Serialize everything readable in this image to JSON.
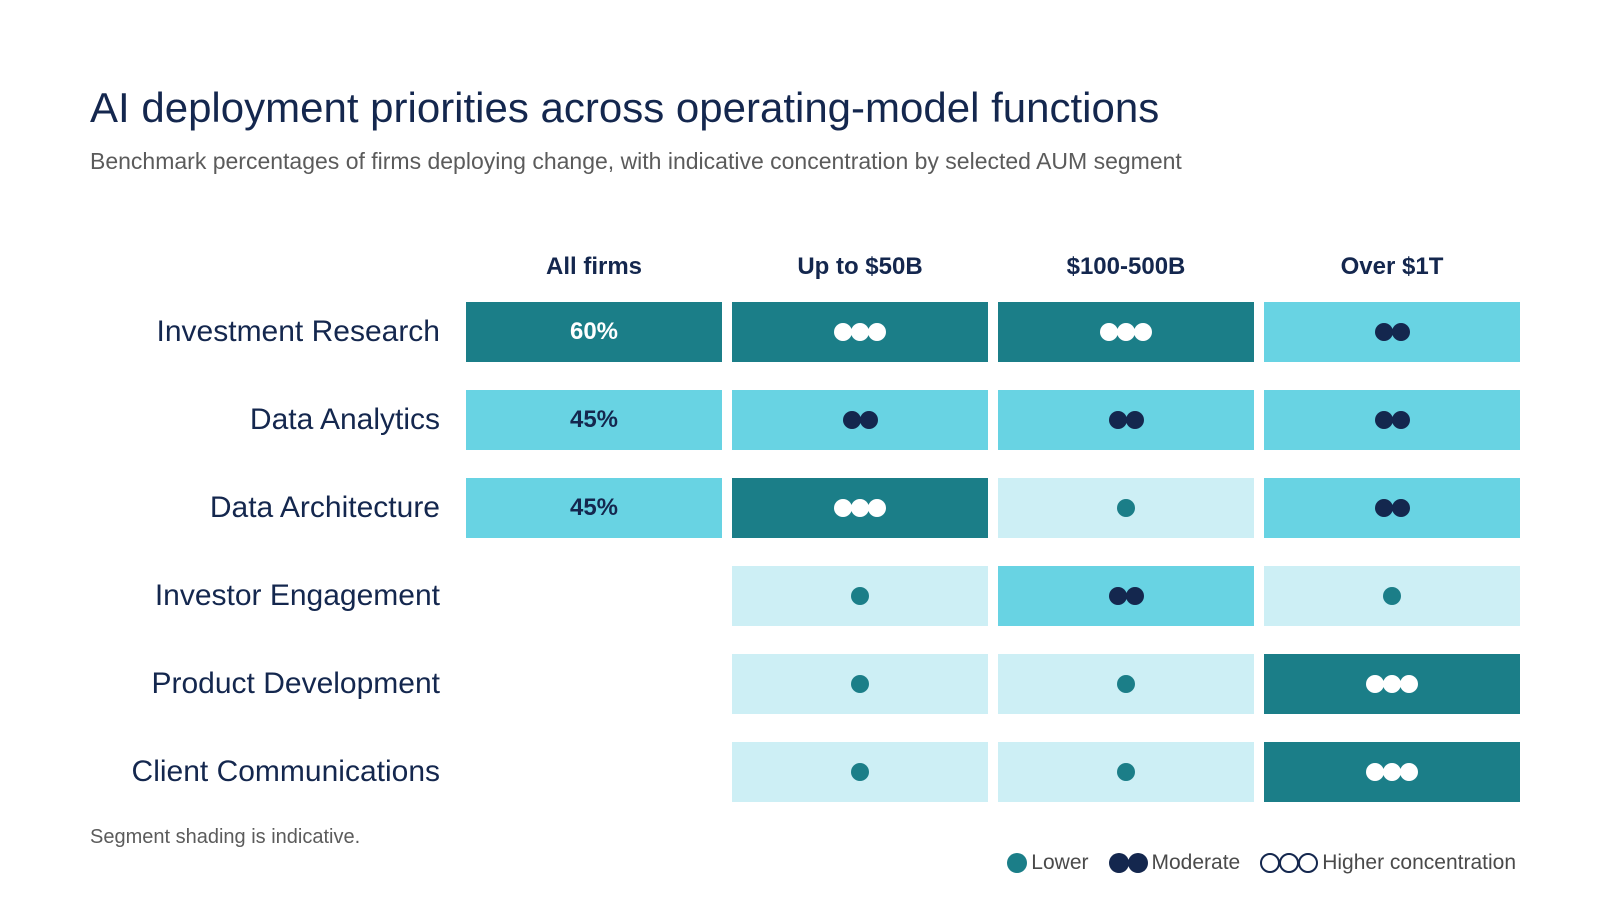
{
  "title": "AI deployment priorities across operating-model functions",
  "subtitle": "Benchmark percentages of firms deploying change, with indicative concentration by selected AUM segment",
  "footnote": "Segment shading is indicative.",
  "colors": {
    "dark": "#1b7e88",
    "medium": "#68d3e3",
    "light": "#cdeff5",
    "navy": "#14274e",
    "teal_dot": "#1b7e88",
    "white": "#ffffff"
  },
  "legend": [
    {
      "label": "Lower",
      "level": 1,
      "style": "teal"
    },
    {
      "label": "Moderate",
      "level": 2,
      "style": "navy"
    },
    {
      "label": "Higher concentration",
      "level": 3,
      "style": "outline"
    }
  ],
  "chart_data": {
    "type": "table",
    "columns": [
      "All firms",
      "Up to $50B",
      "$100-500B",
      "Over $1T"
    ],
    "rows": [
      {
        "label": "Investment Research",
        "all_firms": "60%",
        "segments": [
          3,
          3,
          2
        ]
      },
      {
        "label": "Data Analytics",
        "all_firms": "45%",
        "segments": [
          2,
          2,
          2
        ]
      },
      {
        "label": "Data Architecture",
        "all_firms": "45%",
        "segments": [
          3,
          1,
          2
        ]
      },
      {
        "label": "Investor Engagement",
        "all_firms": null,
        "segments": [
          1,
          2,
          1
        ]
      },
      {
        "label": "Product Development",
        "all_firms": null,
        "segments": [
          1,
          1,
          3
        ]
      },
      {
        "label": "Client Communications",
        "all_firms": null,
        "segments": [
          1,
          1,
          3
        ]
      }
    ]
  }
}
